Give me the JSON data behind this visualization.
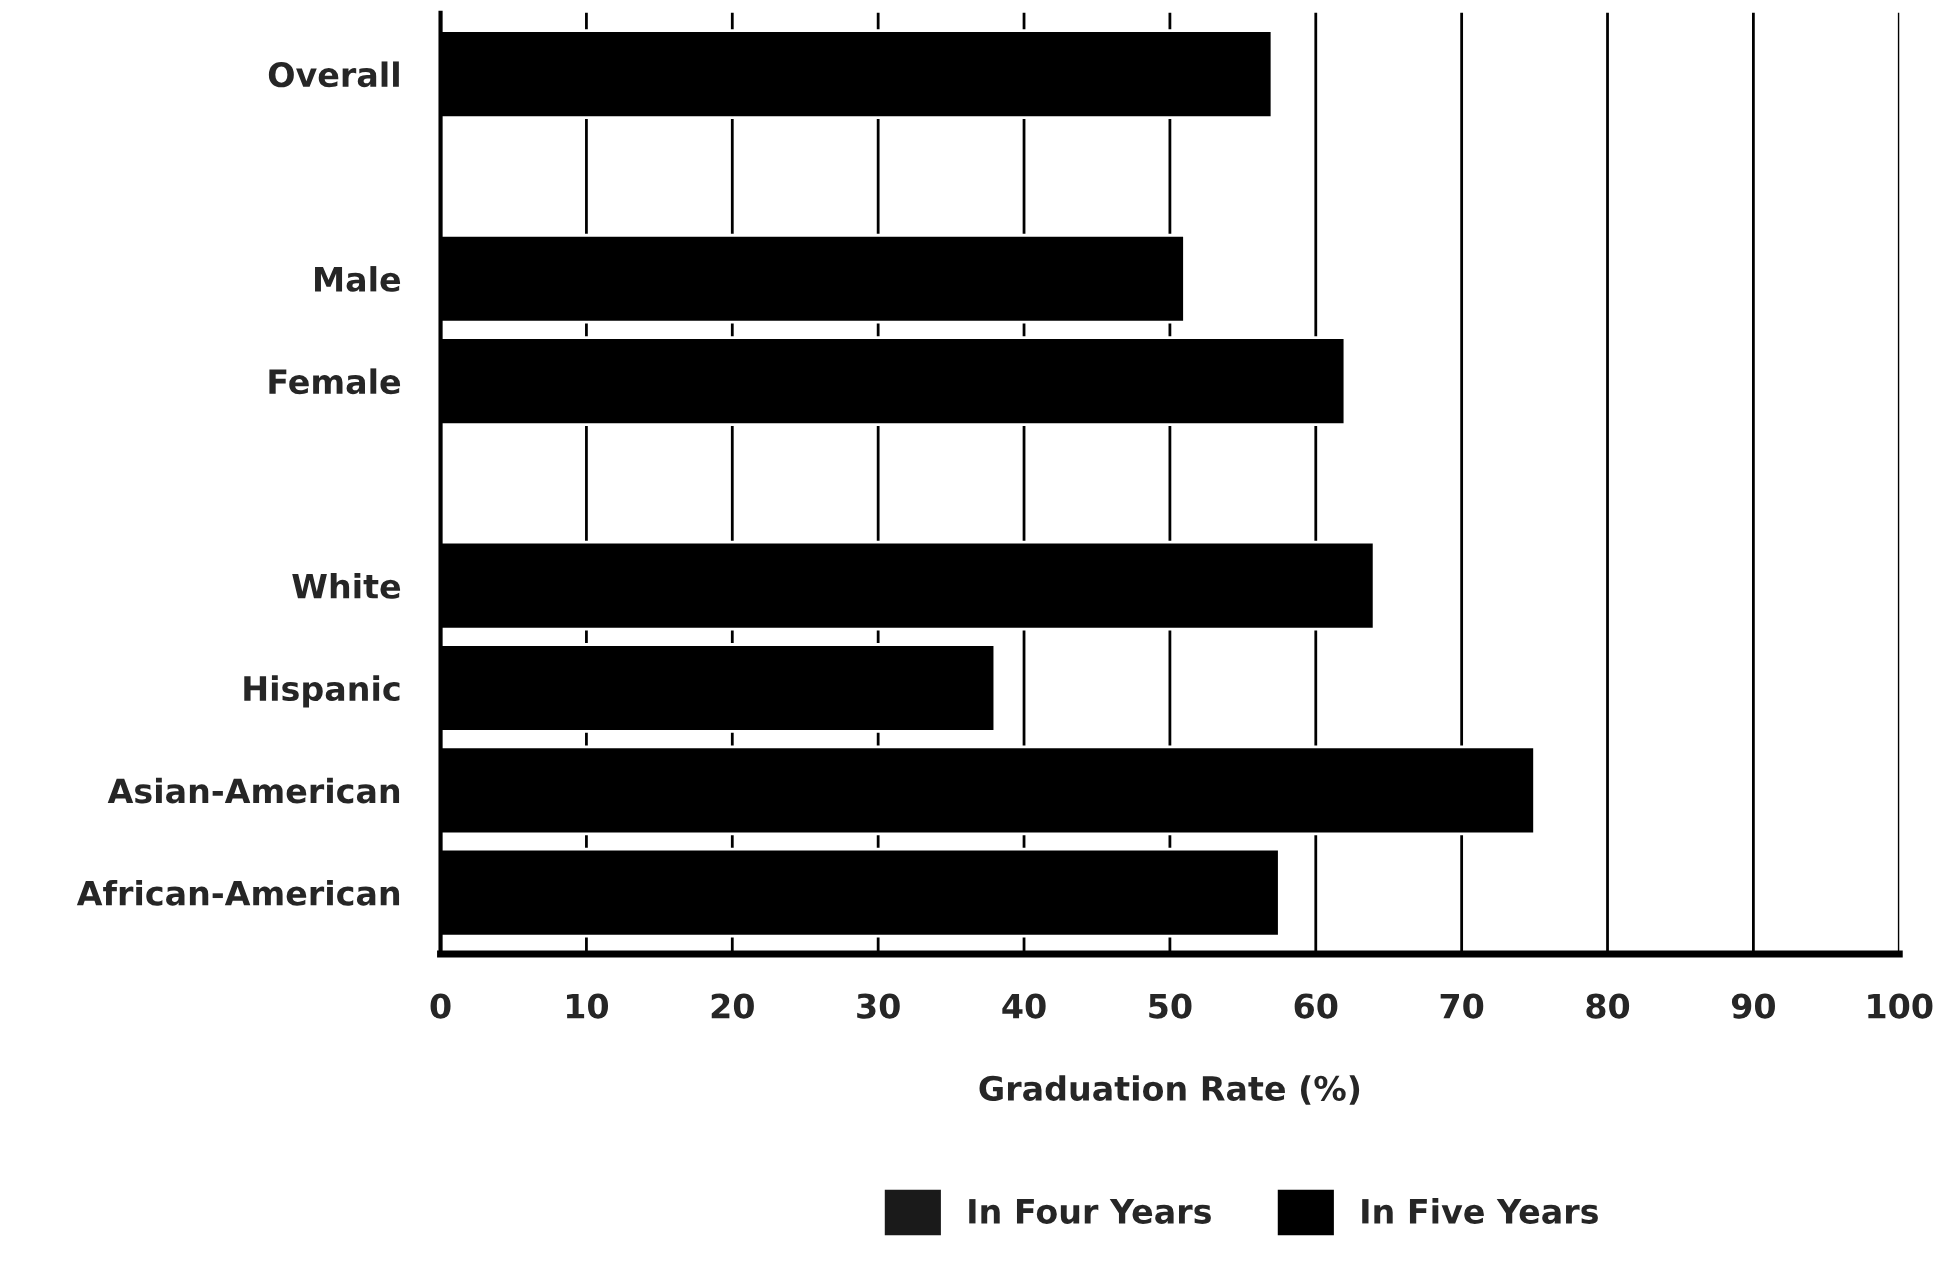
{
  "chart_data": {
    "type": "bar",
    "orientation": "horizontal",
    "xlabel": "Graduation Rate (%)",
    "categories": [
      "Overall",
      null,
      "Male",
      "Female",
      null,
      "White",
      "Hispanic",
      "Asian-American",
      "African-American"
    ],
    "series": [
      {
        "name": "In Four Years",
        "color": "#1a1a1a",
        "values": [
          null,
          null,
          null,
          null,
          null,
          null,
          null,
          null,
          null
        ]
      },
      {
        "name": "In Five Years",
        "color": "#000000",
        "values": [
          57,
          null,
          51,
          62,
          null,
          64,
          38,
          75,
          57.5
        ]
      }
    ],
    "xlim": [
      0,
      100
    ],
    "xticks": [
      0,
      10,
      20,
      30,
      40,
      50,
      60,
      70,
      80,
      90,
      100
    ],
    "grid": "x",
    "legend": "bottom"
  }
}
